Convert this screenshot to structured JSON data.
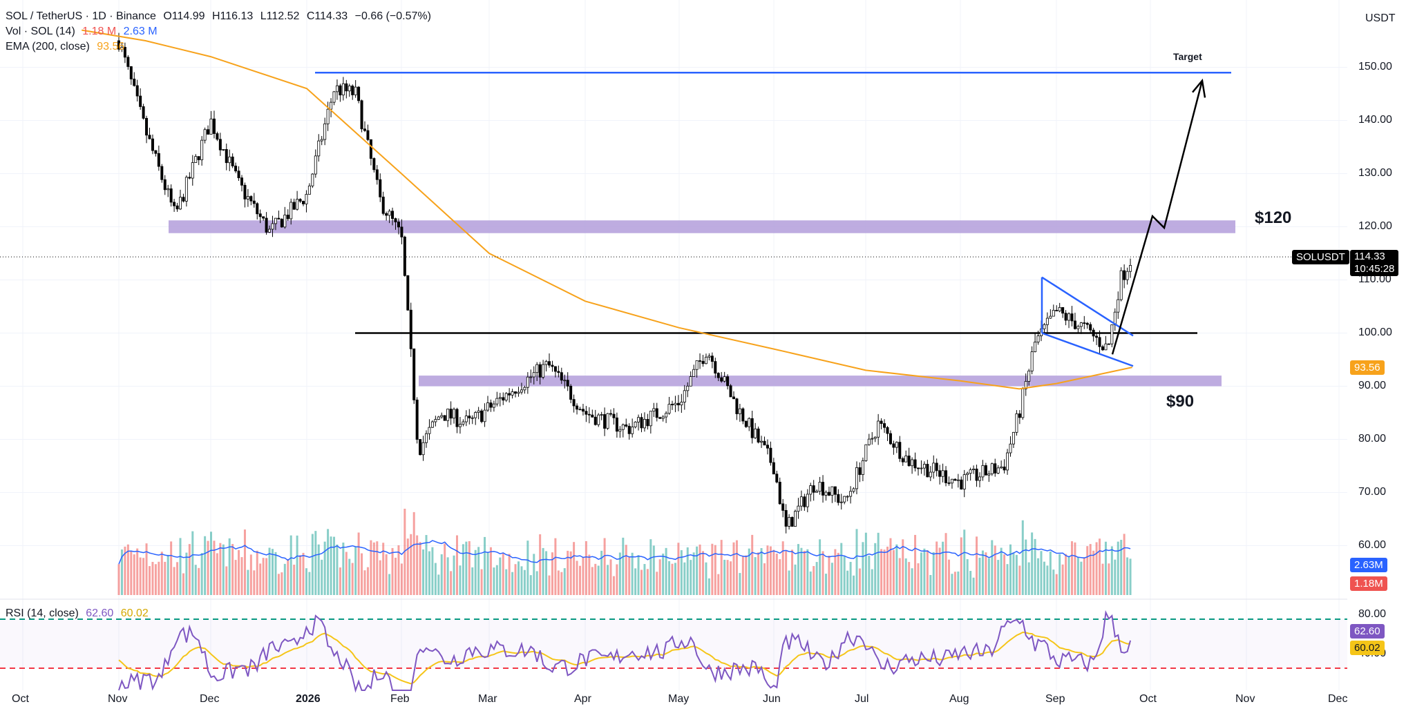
{
  "header": {
    "symbol_line": "SOL / TetherUS · 1D · Binance",
    "ohlc": {
      "open_label": "O",
      "open": "114.99",
      "high_label": "H",
      "high": "116.13",
      "low_label": "L",
      "low": "112.52",
      "close_label": "C",
      "close": "114.33",
      "change": "−0.66 (−0.57%)"
    },
    "vol_label": "Vol · SOL (14)",
    "vol_value": "1.18 M",
    "vol_ma_value": "2.63 M",
    "ema_label": "EMA (200, close)",
    "ema_value": "93.56",
    "rsi_label": "RSI (14, close)",
    "rsi_value": "62.60",
    "rsi_ma_value": "60.02"
  },
  "price_axis": {
    "currency": "USDT",
    "ticks": [
      "150.00",
      "140.00",
      "130.00",
      "120.00",
      "110.00",
      "100.00",
      "90.00",
      "80.00",
      "70.00",
      "60.00"
    ],
    "symbol_tag": "SOLUSDT",
    "last_price": "114.33",
    "countdown": "10:45:28",
    "ema_tag": "93.56",
    "vol_ma_tag": "2.63M",
    "vol_tag": "1.18M"
  },
  "rsi_axis": {
    "ticks": [
      "80.00",
      "40.00"
    ],
    "rsi_tag": "62.60",
    "ma_tag": "60.02"
  },
  "time_axis": {
    "labels": [
      "Oct",
      "Nov",
      "Dec",
      "2026",
      "Feb",
      "Mar",
      "Apr",
      "May",
      "Jun",
      "Jul",
      "Aug",
      "Sep",
      "Oct",
      "Nov",
      "Dec"
    ]
  },
  "annotations": {
    "target": "Target",
    "upper_zone": "$120",
    "lower_zone": "$90"
  },
  "colors": {
    "up": "#26a69a",
    "down": "#ef5350",
    "ema": "#f7a21b",
    "vol_ma": "#2962ff",
    "rsi": "#7e57c2",
    "rsi_ma": "#f5c518",
    "zone": "#b39ddb",
    "trend": "#2962ff"
  },
  "chart_data": {
    "type": "line",
    "title": "SOL / TetherUS · 1D · Binance",
    "ylim": [
      50,
      155
    ],
    "x_labels": [
      "Oct",
      "Nov",
      "Dec",
      "2026",
      "Feb",
      "Mar",
      "Apr",
      "May",
      "Jun",
      "Jul",
      "Aug",
      "Sep"
    ],
    "series": [
      {
        "name": "SOL / TetherUS",
        "x": [
          "Nov 1",
          "Nov 10",
          "Nov 20",
          "Dec 1",
          "Dec 10",
          "Dec 20",
          "Jan 1",
          "Jan 10",
          "Jan 17",
          "Jan 25",
          "Feb 1",
          "Feb 4",
          "Feb 7",
          "Feb 15",
          "Feb 25",
          "Mar 10",
          "Mar 20",
          "Apr 1",
          "Apr 15",
          "May 1",
          "May 10",
          "May 20",
          "Jun 1",
          "Jun 5",
          "Jun 15",
          "Jun 25",
          "Jul 5",
          "Jul 15",
          "Aug 1",
          "Aug 15",
          "Aug 20",
          "Aug 25",
          "Sep 1",
          "Sep 10",
          "Sep 18",
          "Sep 22",
          "Sep 26"
        ],
        "values": [
          155,
          138,
          122,
          140,
          128,
          119,
          126,
          146,
          145,
          125,
          118,
          98,
          78,
          85,
          83,
          90,
          94,
          85,
          82,
          87,
          97,
          86,
          75,
          63,
          72,
          68,
          83,
          76,
          72,
          75,
          85,
          98,
          104,
          101,
          97,
          110,
          114.33
        ]
      },
      {
        "name": "EMA (200, close)",
        "x": [
          "Oct 20",
          "Nov 10",
          "Dec 1",
          "Jan 1",
          "Feb 1",
          "Mar 1",
          "Apr 1",
          "May 1",
          "Jun 1",
          "Jul 1",
          "Aug 1",
          "Aug 20",
          "Sep 1",
          "Sep 26"
        ],
        "values": [
          157,
          155,
          152,
          146,
          130,
          115,
          106,
          101,
          97,
          93,
          91,
          89.5,
          90.5,
          93.56
        ]
      }
    ],
    "volume": {
      "name": "Vol · SOL (14)",
      "last": "1.18M",
      "ma": "2.63M"
    },
    "rsi": {
      "name": "RSI (14, close)",
      "last": 62.6,
      "ma": 60.02,
      "levels": [
        80,
        40
      ]
    },
    "levels": [
      {
        "label": "$120",
        "from": 118.8,
        "to": 121.2
      },
      {
        "label": "$90",
        "from": 90,
        "to": 92
      },
      {
        "label": "",
        "value": 100
      },
      {
        "label": "Target",
        "value": 149
      }
    ]
  }
}
